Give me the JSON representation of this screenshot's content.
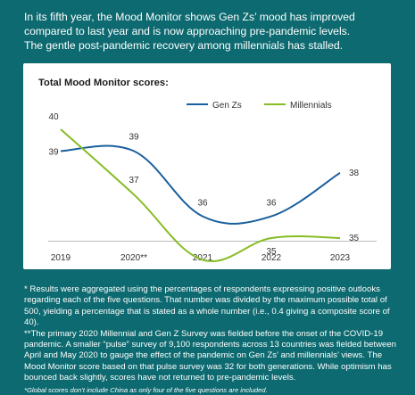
{
  "intro": {
    "line1": "In its fifth year, the Mood Monitor shows Gen Zs’ mood has improved",
    "line2": "compared to last year and is now approaching pre-pandemic levels.",
    "line3": "The gentle post-pandemic recovery among millennials has stalled."
  },
  "chart_data": {
    "type": "line",
    "title": "Total Mood Monitor scores:",
    "categories": [
      "2019",
      "2020**",
      "2021",
      "2022",
      "2023"
    ],
    "series": [
      {
        "name": "Gen Zs",
        "color": "#1a5f9e",
        "values": [
          39,
          39,
          36,
          36,
          38
        ]
      },
      {
        "name": "Millennials",
        "color": "#86bc25",
        "values": [
          40,
          37,
          34,
          35,
          35
        ]
      }
    ],
    "legend_position": "top-right",
    "grid": false
  },
  "notes": {
    "p1": "* Results were aggregated using the percentages of respondents expressing positive outlooks regarding each of the five questions. That number was divided by the maximum possible total of 500, yielding a percentage that is stated as a whole number (i.e., 0.4 giving a composite score of 40).",
    "p2": "**The primary 2020 Millennial and Gen Z Survey was fielded before the onset of the COVID-19 pandemic. A smaller “pulse” survey of 9,100 respondents across 13 countries was fielded between April and May 2020 to gauge the effect of the pandemic on Gen Zs’ and millennials’ views. The Mood Monitor score based on that pulse survey was 32 for both generations. While optimism has bounced back slightly, scores have not returned to pre-pandemic levels.",
    "p3": "*Global scores don’t include China as only four of the five questions are included."
  }
}
